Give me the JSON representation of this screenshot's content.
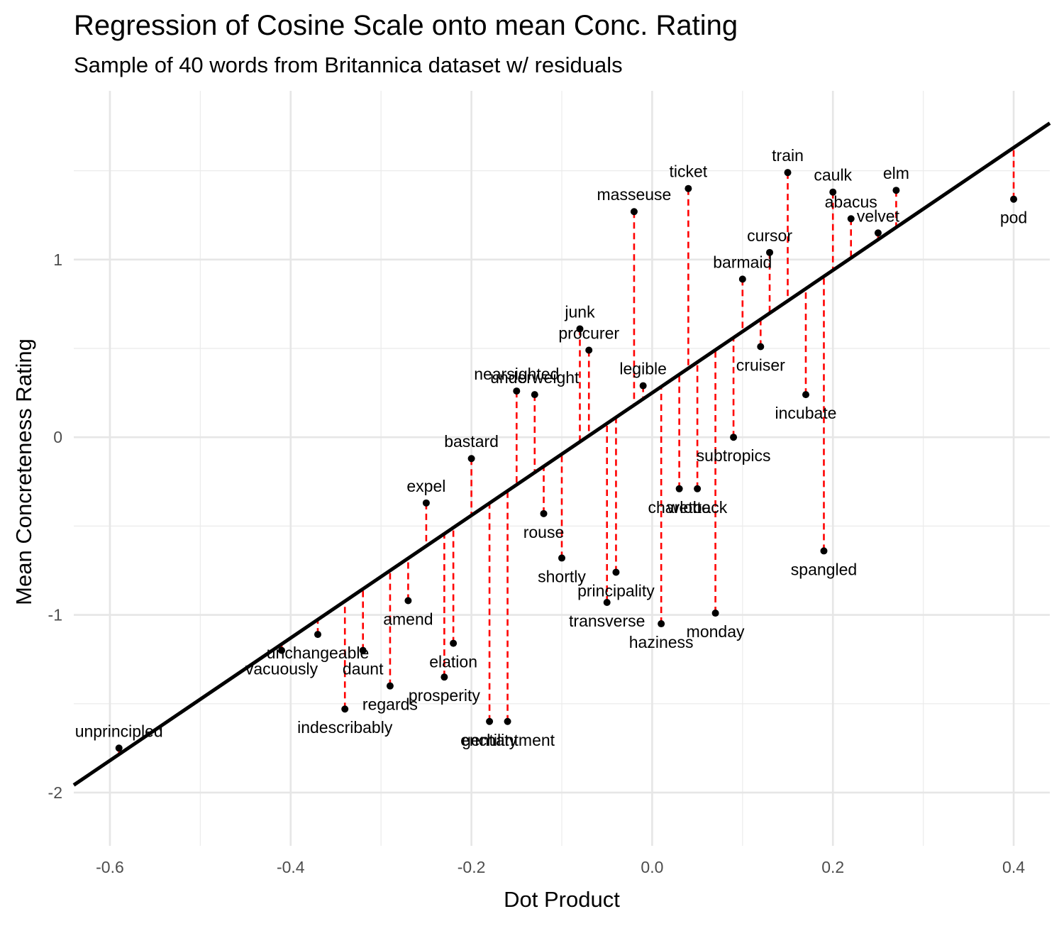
{
  "chart_data": {
    "type": "scatter",
    "title": "Regression of Cosine Scale onto mean Conc. Rating",
    "subtitle": "Sample of 40 words from Britannica dataset w/ residuals",
    "xlabel": "Dot Product",
    "ylabel": "Mean Concreteness Rating",
    "xlim": [
      -0.64,
      0.44
    ],
    "ylim": [
      -2.3,
      1.95
    ],
    "x_ticks": [
      -0.6,
      -0.4,
      -0.2,
      0.0,
      0.2,
      0.4
    ],
    "x_tick_labels": [
      "-0.6",
      "-0.4",
      "-0.2",
      "0.0",
      "0.2",
      "0.4"
    ],
    "y_ticks": [
      -2,
      -1,
      0,
      1
    ],
    "y_tick_labels": [
      "-2",
      "-1",
      "0",
      "1"
    ],
    "grid": true,
    "point_color": "#000000",
    "residual_color": "#ff0000",
    "regression_line": {
      "slope": 3.45,
      "intercept": 0.25,
      "color": "#000000"
    },
    "points": [
      {
        "word": "unprincipled",
        "x": -0.59,
        "y": -1.75
      },
      {
        "word": "vacuously",
        "x": -0.41,
        "y": -1.2
      },
      {
        "word": "unchangeable",
        "x": -0.37,
        "y": -1.11
      },
      {
        "word": "indescribably",
        "x": -0.34,
        "y": -1.53
      },
      {
        "word": "daunt",
        "x": -0.32,
        "y": -1.2
      },
      {
        "word": "regards",
        "x": -0.29,
        "y": -1.4
      },
      {
        "word": "amend",
        "x": -0.27,
        "y": -0.92
      },
      {
        "word": "expel",
        "x": -0.25,
        "y": -0.37
      },
      {
        "word": "prosperity",
        "x": -0.23,
        "y": -1.35
      },
      {
        "word": "elation",
        "x": -0.22,
        "y": -1.16
      },
      {
        "word": "bastard",
        "x": -0.2,
        "y": -0.12
      },
      {
        "word": "gentility",
        "x": -0.18,
        "y": -1.6
      },
      {
        "word": "enchantment",
        "x": -0.16,
        "y": -1.6
      },
      {
        "word": "nearsighted",
        "x": -0.15,
        "y": 0.26
      },
      {
        "word": "underweight",
        "x": -0.13,
        "y": 0.24
      },
      {
        "word": "rouse",
        "x": -0.12,
        "y": -0.43
      },
      {
        "word": "shortly",
        "x": -0.1,
        "y": -0.68
      },
      {
        "word": "junk",
        "x": -0.08,
        "y": 0.61
      },
      {
        "word": "procurer",
        "x": -0.07,
        "y": 0.49
      },
      {
        "word": "transverse",
        "x": -0.05,
        "y": -0.93
      },
      {
        "word": "principality",
        "x": -0.04,
        "y": -0.76
      },
      {
        "word": "masseuse",
        "x": -0.02,
        "y": 1.27
      },
      {
        "word": "legible",
        "x": -0.01,
        "y": 0.29
      },
      {
        "word": "haziness",
        "x": 0.01,
        "y": -1.05
      },
      {
        "word": "charlotte",
        "x": 0.03,
        "y": -0.29
      },
      {
        "word": "ticket",
        "x": 0.04,
        "y": 1.4
      },
      {
        "word": "wetback",
        "x": 0.05,
        "y": -0.29
      },
      {
        "word": "monday",
        "x": 0.07,
        "y": -0.99
      },
      {
        "word": "subtropics",
        "x": 0.09,
        "y": 0.0
      },
      {
        "word": "barmaid",
        "x": 0.1,
        "y": 0.89
      },
      {
        "word": "cruiser",
        "x": 0.12,
        "y": 0.51
      },
      {
        "word": "cursor",
        "x": 0.13,
        "y": 1.04
      },
      {
        "word": "train",
        "x": 0.15,
        "y": 1.49
      },
      {
        "word": "incubate",
        "x": 0.17,
        "y": 0.24
      },
      {
        "word": "spangled",
        "x": 0.19,
        "y": -0.64
      },
      {
        "word": "caulk",
        "x": 0.2,
        "y": 1.38
      },
      {
        "word": "abacus",
        "x": 0.22,
        "y": 1.23
      },
      {
        "word": "velvet",
        "x": 0.25,
        "y": 1.15
      },
      {
        "word": "elm",
        "x": 0.27,
        "y": 1.39
      },
      {
        "word": "pod",
        "x": 0.4,
        "y": 1.34
      }
    ]
  }
}
